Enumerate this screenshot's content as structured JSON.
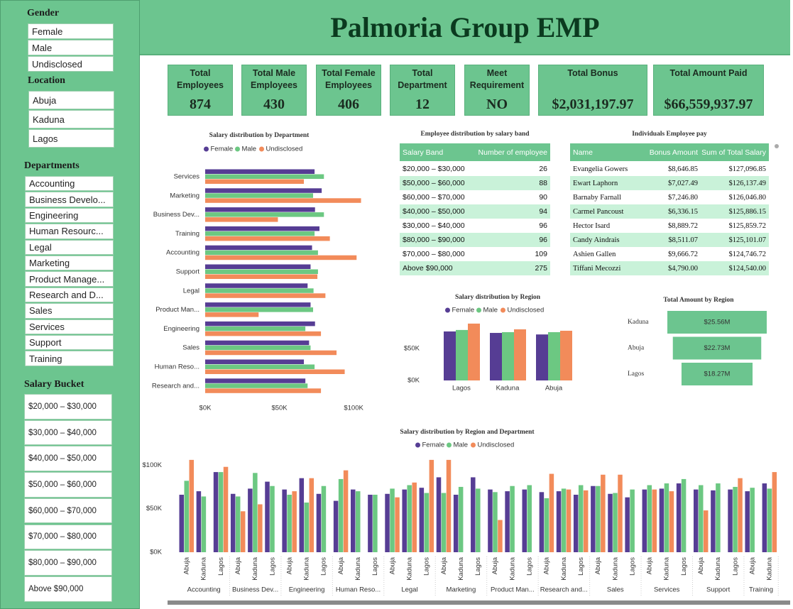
{
  "header": {
    "title": "Palmoria Group EMP"
  },
  "slicers": [
    {
      "title": "Gender",
      "items": [
        "Female",
        "Male",
        "Undisclosed"
      ]
    },
    {
      "title": "Location",
      "items": [
        "Abuja",
        "Kaduna",
        "Lagos"
      ]
    },
    {
      "title": "Departments",
      "items": [
        "Accounting",
        "Business Develo...",
        "Engineering",
        "Human Resourc...",
        "Legal",
        "Marketing",
        "Product Manage...",
        "Research and D...",
        "Sales",
        "Services",
        "Support",
        "Training"
      ]
    },
    {
      "title": "Salary Bucket",
      "items": [
        "$20,000 – $30,000",
        "$30,000 – $40,000",
        "$40,000 – $50,000",
        "$50,000 – $60,000",
        "$60,000 – $70,000",
        "$70,000 – $80,000",
        "$80,000 – $90,000",
        "Above $90,000"
      ]
    }
  ],
  "kpis": [
    {
      "label": "Total Employees",
      "value": 874
    },
    {
      "label": "Total Male Employees",
      "value": 430
    },
    {
      "label": "Total Female Employees",
      "value": 406
    },
    {
      "label": "Total Department",
      "value": 12
    },
    {
      "label": "Meet Requirement",
      "value": "NO"
    },
    {
      "label": "Total Bonus",
      "value": "$2,031,197.97"
    },
    {
      "label": "Total Amount Paid",
      "value": "$66,559,937.97"
    }
  ],
  "tables": [
    {
      "title": "Employee distribution by salary band",
      "columns": [
        "Salary Band",
        "Number of employee"
      ],
      "rows": [
        [
          "$20,000 – $30,000",
          26
        ],
        [
          "$50,000 – $60,000",
          88
        ],
        [
          "$60,000 – $70,000",
          90
        ],
        [
          "$40,000 – $50,000",
          94
        ],
        [
          "$30,000 – $40,000",
          96
        ],
        [
          "$80,000 – $90,000",
          96
        ],
        [
          "$70,000 – $80,000",
          109
        ],
        [
          "Above $90,000",
          275
        ]
      ]
    },
    {
      "title": "Individuals Employee pay",
      "columns": [
        "Name",
        "Bonus Amount",
        "Sum of Total Salary"
      ],
      "rows": [
        [
          "Evangelia Gowers",
          "$8,646.85",
          "$127,096.85"
        ],
        [
          "Ewart Laphorn",
          "$7,027.49",
          "$126,137.49"
        ],
        [
          "Barnaby Farnall",
          "$7,246.80",
          "$126,046.80"
        ],
        [
          "Carmel Pancoust",
          "$6,336.15",
          "$125,886.15"
        ],
        [
          "Hector Isard",
          "$8,889.72",
          "$125,859.72"
        ],
        [
          "Candy Aindrais",
          "$8,511.07",
          "$125,101.07"
        ],
        [
          "Ashien Gallen",
          "$9,666.72",
          "$124,746.72"
        ],
        [
          "Tiffani Mecozzi",
          "$4,790.00",
          "$124,540.00"
        ]
      ]
    }
  ],
  "chart_data": [
    {
      "type": "barh",
      "title": "Salary distribution by Department",
      "categories": [
        "Services",
        "Marketing",
        "Business Dev...",
        "Training",
        "Accounting",
        "Support",
        "Legal",
        "Product Man...",
        "Engineering",
        "Sales",
        "Human Reso...",
        "Research and..."
      ],
      "series": [
        {
          "name": "Female",
          "color": "#563d94",
          "values": [
            73.7,
            78.5,
            74,
            77,
            72,
            71,
            69,
            71,
            74,
            70,
            66.5,
            67.5
          ]
        },
        {
          "name": "Male",
          "color": "#6cc882",
          "values": [
            80,
            72.7,
            80,
            73.7,
            76,
            76,
            73,
            72.7,
            67.5,
            71,
            73.7,
            69
          ]
        },
        {
          "name": "Undisclosed",
          "color": "#f28b5a",
          "values": [
            66.5,
            105,
            49,
            84,
            102,
            75.6,
            81,
            36,
            78,
            88.5,
            94,
            78
          ]
        }
      ],
      "xlim": [
        0,
        110
      ],
      "xticks": [
        {
          "value": 0,
          "label": "$0K"
        },
        {
          "value": 50,
          "label": "$50K"
        },
        {
          "value": 100,
          "label": "$100K"
        }
      ]
    },
    {
      "type": "bar",
      "title": "Salary distribution by Region",
      "categories": [
        "Lagos",
        "Kaduna",
        "Abuja"
      ],
      "series": [
        {
          "name": "Female",
          "color": "#563d94",
          "values": [
            76.7,
            74.4,
            72
          ]
        },
        {
          "name": "Male",
          "color": "#6cc882",
          "values": [
            79,
            75.6,
            75.6
          ]
        },
        {
          "name": "Undisclosed",
          "color": "#f28b5a",
          "values": [
            89,
            80,
            77.8
          ]
        }
      ],
      "ylim": [
        0,
        100
      ],
      "yticks": [
        {
          "value": 0,
          "label": "$0K"
        },
        {
          "value": 50,
          "label": "$50K"
        }
      ]
    },
    {
      "type": "funnel",
      "title": "Total Amount by Region",
      "categories": [
        "Kaduna",
        "Abuja",
        "Lagos"
      ],
      "values": [
        25.56,
        22.73,
        18.27
      ],
      "value_labels": [
        "$25.56M",
        "$22.73M",
        "$18.27M"
      ],
      "color": "#6cc58f"
    },
    {
      "type": "grouped-bar",
      "title": "Salary distribution by Region and Department",
      "groups": [
        {
          "name": "Accounting",
          "categories": [
            "Abuja",
            "Kaduna",
            "Lagos"
          ]
        },
        {
          "name": "Business Dev...",
          "categories": [
            "Abuja",
            "Kaduna",
            "Lagos"
          ]
        },
        {
          "name": "Engineering",
          "categories": [
            "Abuja",
            "Kaduna",
            "Lagos"
          ]
        },
        {
          "name": "Human Reso...",
          "categories": [
            "Abuja",
            "Kaduna",
            "Lagos"
          ]
        },
        {
          "name": "Legal",
          "categories": [
            "Abuja",
            "Kaduna",
            "Lagos"
          ]
        },
        {
          "name": "Marketing",
          "categories": [
            "Abuja",
            "Kaduna",
            "Lagos"
          ]
        },
        {
          "name": "Product Man...",
          "categories": [
            "Abuja",
            "Kaduna",
            "Lagos"
          ]
        },
        {
          "name": "Research and...",
          "categories": [
            "Abuja",
            "Kaduna",
            "Lagos"
          ]
        },
        {
          "name": "Sales",
          "categories": [
            "Abuja",
            "Kaduna",
            "Lagos"
          ]
        },
        {
          "name": "Services",
          "categories": [
            "Abuja",
            "Kaduna",
            "Lagos"
          ]
        },
        {
          "name": "Support",
          "categories": [
            "Abuja",
            "Kaduna",
            "Lagos"
          ]
        },
        {
          "name": "Training",
          "categories": [
            "Abuja",
            "Kaduna"
          ]
        }
      ],
      "series": [
        {
          "name": "Female",
          "color": "#563d94",
          "values": [
            66,
            70,
            92,
            67,
            73,
            81,
            72,
            85,
            67,
            59,
            72,
            66,
            67,
            72,
            74,
            86,
            66,
            86,
            72,
            70,
            72,
            69,
            70,
            66,
            76,
            67,
            63,
            72,
            73,
            79,
            72,
            71,
            72,
            70,
            79
          ]
        },
        {
          "name": "Male",
          "color": "#6cc882",
          "values": [
            82,
            64,
            92,
            64,
            91,
            76,
            66,
            57,
            76,
            84,
            70,
            66,
            73,
            77,
            68,
            68,
            75,
            73,
            69,
            76,
            77,
            62,
            73,
            77,
            76,
            68,
            72,
            77,
            79,
            84,
            77,
            79,
            75,
            74,
            73
          ]
        },
        {
          "name": "Undisclosed",
          "color": "#f28b5a",
          "values": [
            106,
            null,
            98,
            47,
            55,
            null,
            70,
            85,
            null,
            94,
            null,
            null,
            63,
            80,
            106,
            106,
            null,
            null,
            37,
            null,
            null,
            90,
            72,
            71,
            89,
            89,
            null,
            72,
            70,
            null,
            48,
            null,
            85,
            null,
            92
          ]
        }
      ],
      "ylim": [
        0,
        110
      ],
      "yticks": [
        {
          "value": 0,
          "label": "$0K"
        },
        {
          "value": 50,
          "label": "$50K"
        },
        {
          "value": 100,
          "label": "$100K"
        }
      ]
    }
  ]
}
